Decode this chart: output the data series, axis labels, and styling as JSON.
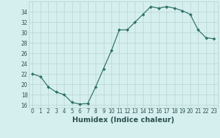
{
  "x": [
    0,
    1,
    2,
    3,
    4,
    5,
    6,
    7,
    8,
    9,
    10,
    11,
    12,
    13,
    14,
    15,
    16,
    17,
    18,
    19,
    20,
    21,
    22,
    23
  ],
  "y": [
    22.0,
    21.5,
    19.5,
    18.5,
    18.0,
    16.5,
    16.2,
    16.3,
    19.5,
    23.0,
    26.5,
    30.5,
    30.5,
    32.0,
    33.5,
    35.0,
    34.7,
    35.0,
    34.7,
    34.2,
    33.5,
    30.5,
    29.0,
    28.8
  ],
  "line_color": "#2d7065",
  "marker": "D",
  "marker_size": 2.2,
  "bg_color": "#d5efef",
  "grid_color": "#b8d0d0",
  "xlabel": "Humidex (Indice chaleur)",
  "xlim": [
    -0.5,
    23.5
  ],
  "ylim": [
    15.5,
    36.0
  ],
  "yticks": [
    16,
    18,
    20,
    22,
    24,
    26,
    28,
    30,
    32,
    34
  ],
  "xticks": [
    0,
    1,
    2,
    3,
    4,
    5,
    6,
    7,
    8,
    9,
    10,
    11,
    12,
    13,
    14,
    15,
    16,
    17,
    18,
    19,
    20,
    21,
    22,
    23
  ],
  "xtick_labels": [
    "0",
    "1",
    "2",
    "3",
    "4",
    "5",
    "6",
    "7",
    "8",
    "9",
    "10",
    "11",
    "12",
    "13",
    "14",
    "15",
    "16",
    "17",
    "18",
    "19",
    "20",
    "21",
    "22",
    "23"
  ],
  "tick_fontsize": 5.5,
  "xlabel_fontsize": 7.5,
  "label_color": "#2d5050"
}
